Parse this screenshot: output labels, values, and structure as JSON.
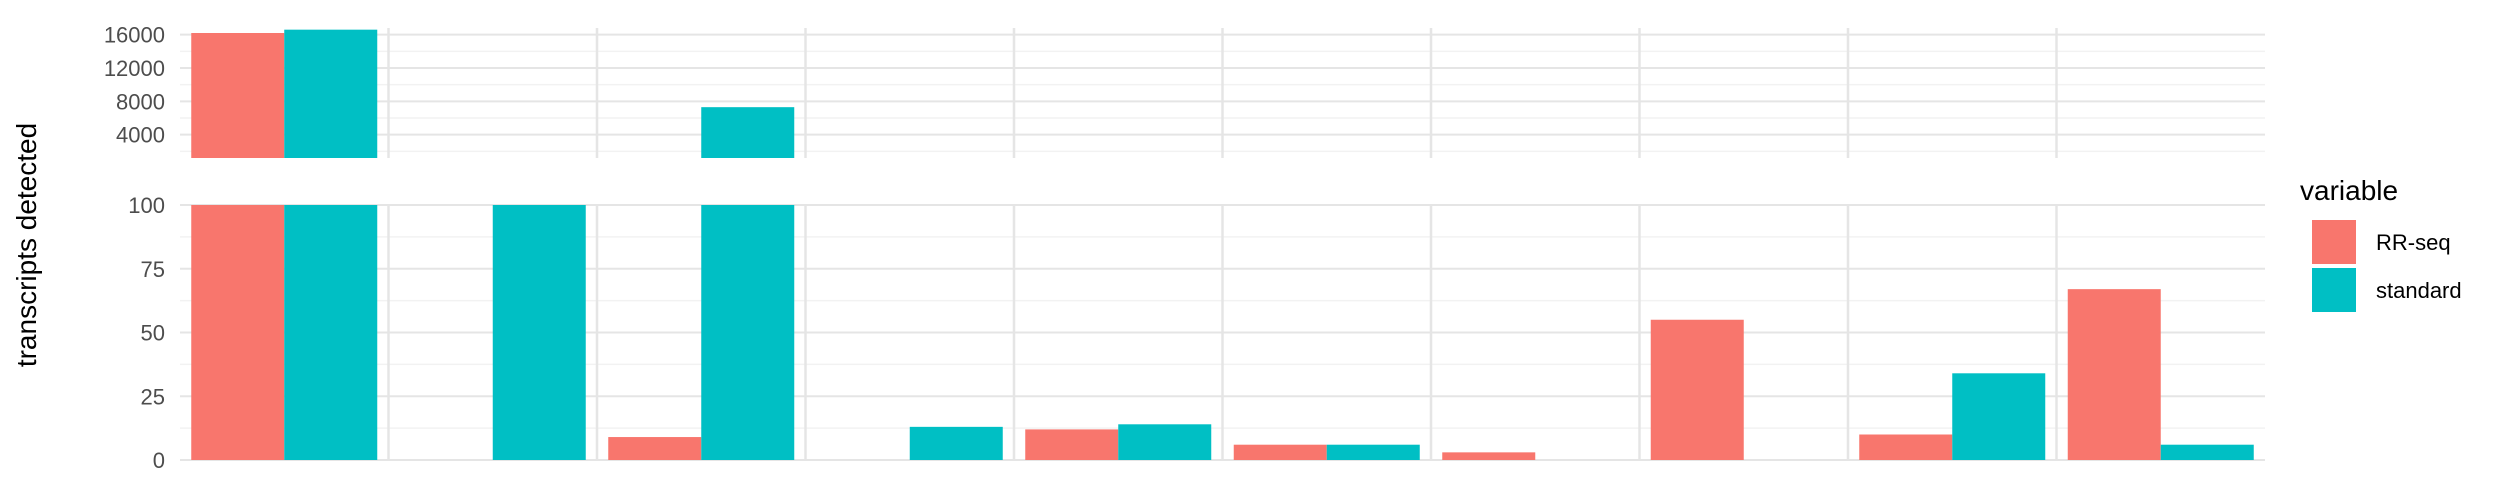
{
  "chart_data": {
    "type": "bar",
    "title": "",
    "xlabel": "",
    "ylabel": "transcripts detected",
    "axis_break": {
      "lower_ylim": [
        0,
        100
      ],
      "lower_ticks": [
        0,
        25,
        50,
        75,
        100
      ],
      "upper_ylim": [
        1200,
        16800
      ],
      "upper_ticks": [
        4000,
        8000,
        12000,
        16000
      ]
    },
    "categories": [
      "",
      "",
      "",
      "",
      "",
      "",
      "",
      "",
      "",
      ""
    ],
    "series": [
      {
        "name": "RR-seq",
        "color": "#F8766D",
        "values": [
          16200,
          0,
          9,
          0,
          12,
          6,
          3,
          55,
          10,
          67
        ]
      },
      {
        "name": "standard",
        "color": "#00BFC4",
        "values": [
          16600,
          100,
          7300,
          13,
          14,
          6,
          0,
          0,
          34,
          6
        ]
      }
    ],
    "grid": true,
    "legend": {
      "title": "variable",
      "position": "right"
    }
  }
}
